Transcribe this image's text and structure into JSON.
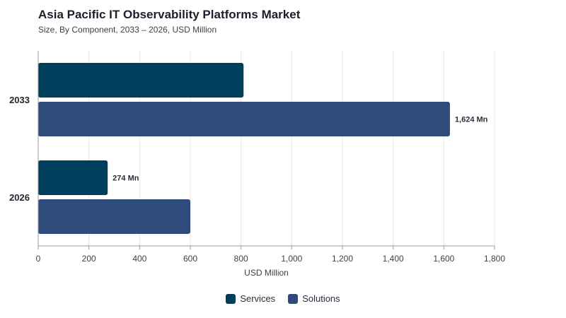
{
  "header": {
    "title": "Asia Pacific IT Observability Platforms Market",
    "subtitle": "Size, By Component, 2033 – 2026, USD Million"
  },
  "legend": {
    "items": [
      {
        "label": "Services",
        "color": "#003f5c"
      },
      {
        "label": "Solutions",
        "color": "#2f4b7c"
      }
    ]
  },
  "chart_data": {
    "type": "bar",
    "orientation": "horizontal",
    "title": "Asia Pacific IT Observability Platforms Market",
    "subtitle": "Size, By Component, 2033 – 2026, USD Million",
    "categories": [
      "2033",
      "2026"
    ],
    "series": [
      {
        "name": "Services",
        "values": [
          810,
          274
        ],
        "color": "#003f5c",
        "labels": [
          "",
          "274 Mn"
        ]
      },
      {
        "name": "Solutions",
        "values": [
          1624,
          600
        ],
        "color": "#2f4b7c",
        "labels": [
          "1,624 Mn",
          ""
        ]
      }
    ],
    "xlabel": "USD Million",
    "ylabel": "",
    "xlim": [
      0,
      1800
    ],
    "xticks": [
      0,
      200,
      400,
      600,
      800,
      1000,
      1200,
      1400,
      1600,
      1800
    ],
    "xtick_labels": [
      "0",
      "200",
      "400",
      "600",
      "800",
      "1,000",
      "1,200",
      "1,400",
      "1,600",
      "1,800"
    ],
    "grid": true,
    "legend_position": "bottom"
  }
}
